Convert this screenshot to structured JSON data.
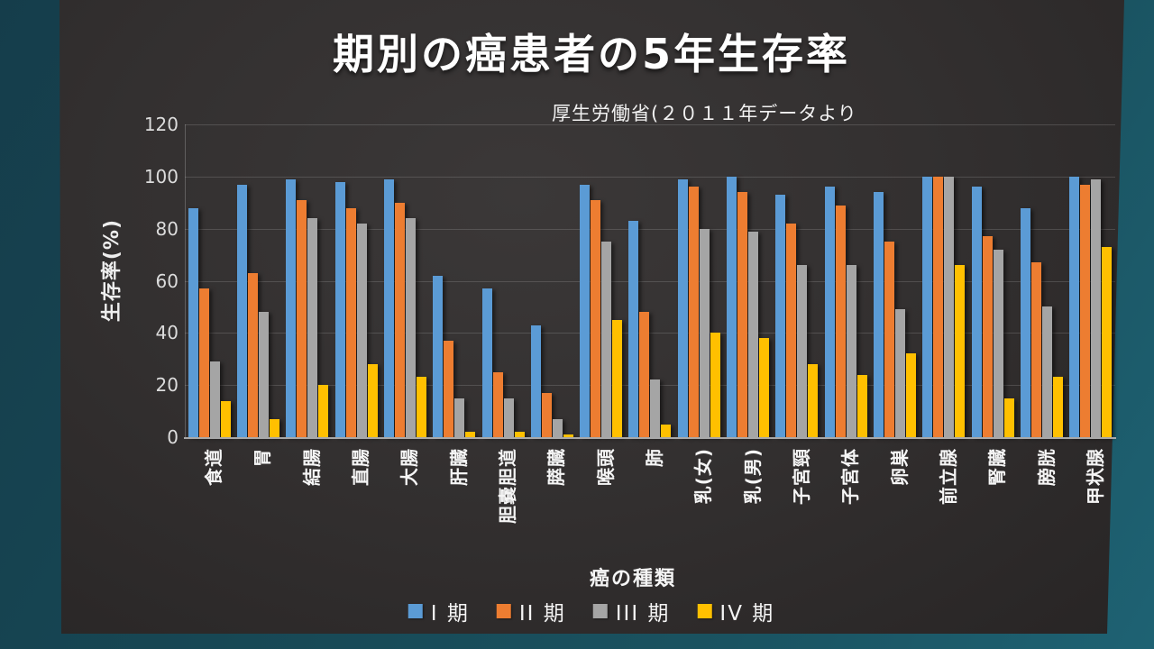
{
  "slide": {
    "title": "期別の癌患者の5年生存率",
    "subtitle": "厚生労働省(２０１１年データより"
  },
  "chart_data": {
    "type": "bar",
    "title": "期別の癌患者の5年生存率",
    "subtitle": "厚生労働省(２０１１年データより",
    "xlabel": "癌の種類",
    "ylabel": "生存率(%)",
    "ylim": [
      0,
      120
    ],
    "yticks": [
      0,
      20,
      40,
      60,
      80,
      100,
      120
    ],
    "grid": true,
    "legend_position": "bottom",
    "categories": [
      "食道",
      "胃",
      "結腸",
      "直腸",
      "大腸",
      "肝臓",
      "胆嚢胆道",
      "膵臓",
      "喉頭",
      "肺",
      "乳(女)",
      "乳(男)",
      "子宮頸",
      "子宮体",
      "卵巣",
      "前立腺",
      "腎臓",
      "膀胱",
      "甲状腺"
    ],
    "series": [
      {
        "name": "I 期",
        "color": "#5B9BD5",
        "values": [
          88,
          97,
          99,
          98,
          99,
          62,
          57,
          43,
          97,
          83,
          99,
          100,
          93,
          96,
          94,
          100,
          96,
          88,
          100
        ]
      },
      {
        "name": "II 期",
        "color": "#ED7D31",
        "values": [
          57,
          63,
          91,
          88,
          90,
          37,
          25,
          17,
          91,
          48,
          96,
          94,
          82,
          89,
          75,
          100,
          77,
          67,
          97
        ]
      },
      {
        "name": "III 期",
        "color": "#A5A5A5",
        "values": [
          29,
          48,
          84,
          82,
          84,
          15,
          15,
          7,
          75,
          22,
          80,
          79,
          66,
          66,
          49,
          100,
          72,
          50,
          99
        ]
      },
      {
        "name": "IV 期",
        "color": "#FFC000",
        "values": [
          14,
          7,
          20,
          28,
          23,
          2,
          2,
          1,
          45,
          5,
          40,
          38,
          28,
          24,
          32,
          66,
          15,
          23,
          73
        ]
      }
    ]
  }
}
